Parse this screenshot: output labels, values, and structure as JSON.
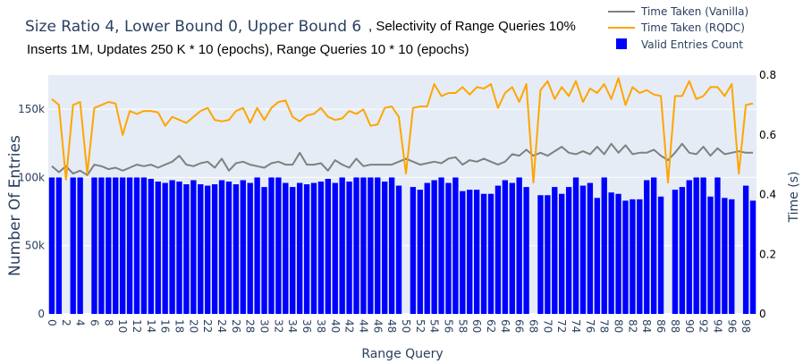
{
  "chart_data": {
    "type": "bar",
    "title": "Size Ratio 4, Lower Bound 0, Upper Bound 6",
    "title_suffix": ", Selectivity of Range Queries 10%",
    "subtitle": "Inserts 1M, Updates 250 K * 10 (epochs), Range Queries 10 * 10 (epochs)",
    "xlabel": "Range Query",
    "ylabel": "Number Of Entries",
    "y2label": "Time (s)",
    "ylim": [
      0,
      175000
    ],
    "y2lim": [
      0,
      0.8
    ],
    "xlim": [
      -0.5,
      99.5
    ],
    "grid": true,
    "legend_position": "top-right",
    "x_tick_labels": [
      "0",
      "2",
      "4",
      "6",
      "8",
      "10",
      "12",
      "14",
      "16",
      "18",
      "20",
      "22",
      "24",
      "26",
      "28",
      "30",
      "32",
      "34",
      "36",
      "38",
      "40",
      "42",
      "44",
      "46",
      "48",
      "50",
      "52",
      "54",
      "56",
      "58",
      "60",
      "62",
      "64",
      "66",
      "68",
      "70",
      "72",
      "74",
      "76",
      "78",
      "80",
      "82",
      "84",
      "86",
      "88",
      "90",
      "92",
      "94",
      "96",
      "98"
    ],
    "y_tick_labels": [
      "0",
      "50k",
      "100k",
      "150k"
    ],
    "y2_tick_labels": [
      "0",
      "0.2",
      "0.4",
      "0.6",
      "0.8"
    ],
    "x": [
      0,
      1,
      2,
      3,
      4,
      5,
      6,
      7,
      8,
      9,
      10,
      11,
      12,
      13,
      14,
      15,
      16,
      17,
      18,
      19,
      20,
      21,
      22,
      23,
      24,
      25,
      26,
      27,
      28,
      29,
      30,
      31,
      32,
      33,
      34,
      35,
      36,
      37,
      38,
      39,
      40,
      41,
      42,
      43,
      44,
      45,
      46,
      47,
      48,
      49,
      50,
      51,
      52,
      53,
      54,
      55,
      56,
      57,
      58,
      59,
      60,
      61,
      62,
      63,
      64,
      65,
      66,
      67,
      68,
      69,
      70,
      71,
      72,
      73,
      74,
      75,
      76,
      77,
      78,
      79,
      80,
      81,
      82,
      83,
      84,
      85,
      86,
      87,
      88,
      89,
      90,
      91,
      92,
      93,
      94,
      95,
      96,
      97,
      98,
      99
    ],
    "series": [
      {
        "name": "Valid Entries Count",
        "kind": "bar",
        "axis": "y",
        "color": "#0000ff",
        "values": [
          100000,
          100000,
          0,
          100000,
          100000,
          0,
          100000,
          100000,
          100000,
          100000,
          100000,
          100000,
          100000,
          100000,
          99000,
          97000,
          96000,
          98000,
          97000,
          95000,
          98000,
          95000,
          94000,
          95000,
          98000,
          97000,
          95000,
          98000,
          96000,
          100000,
          93000,
          100000,
          100000,
          96000,
          93000,
          96000,
          95000,
          96000,
          97000,
          99000,
          96000,
          100000,
          97000,
          100000,
          100000,
          100000,
          100000,
          97000,
          100000,
          94000,
          0,
          93000,
          91000,
          96000,
          98000,
          100000,
          96000,
          100000,
          90000,
          91000,
          91000,
          88000,
          88000,
          94000,
          98000,
          96000,
          100000,
          93000,
          0,
          87000,
          87000,
          93000,
          88000,
          93000,
          100000,
          94000,
          96000,
          85000,
          100000,
          89000,
          88000,
          83000,
          84000,
          84000,
          98000,
          100000,
          86000,
          0,
          91000,
          93000,
          98000,
          100000,
          100000,
          86000,
          100000,
          85000,
          84000,
          0,
          94000,
          83000
        ]
      },
      {
        "name": "Time Taken (Vanilla)",
        "kind": "line",
        "axis": "y2",
        "color": "#808080",
        "values": [
          0.495,
          0.475,
          0.495,
          0.47,
          0.48,
          0.465,
          0.5,
          0.495,
          0.485,
          0.49,
          0.48,
          0.49,
          0.5,
          0.495,
          0.5,
          0.49,
          0.5,
          0.51,
          0.53,
          0.5,
          0.495,
          0.505,
          0.51,
          0.49,
          0.52,
          0.48,
          0.505,
          0.51,
          0.5,
          0.495,
          0.49,
          0.505,
          0.51,
          0.5,
          0.5,
          0.54,
          0.5,
          0.5,
          0.505,
          0.48,
          0.515,
          0.5,
          0.49,
          0.52,
          0.495,
          0.5,
          0.5,
          0.5,
          0.5,
          0.51,
          0.52,
          0.51,
          0.5,
          0.505,
          0.51,
          0.505,
          0.52,
          0.525,
          0.5,
          0.515,
          0.51,
          0.52,
          0.51,
          0.5,
          0.51,
          0.535,
          0.53,
          0.55,
          0.53,
          0.54,
          0.53,
          0.545,
          0.56,
          0.54,
          0.535,
          0.545,
          0.535,
          0.56,
          0.535,
          0.57,
          0.54,
          0.565,
          0.535,
          0.54,
          0.54,
          0.55,
          0.53,
          0.515,
          0.54,
          0.57,
          0.54,
          0.535,
          0.56,
          0.53,
          0.555,
          0.535,
          0.54,
          0.545,
          0.54,
          0.54
        ]
      },
      {
        "name": "Time Taken (RQDC)",
        "kind": "line",
        "axis": "y2",
        "color": "#ffa500",
        "values": [
          0.72,
          0.7,
          0.45,
          0.7,
          0.71,
          0.47,
          0.69,
          0.7,
          0.71,
          0.705,
          0.6,
          0.68,
          0.67,
          0.68,
          0.68,
          0.675,
          0.63,
          0.66,
          0.65,
          0.64,
          0.66,
          0.68,
          0.69,
          0.65,
          0.645,
          0.65,
          0.68,
          0.69,
          0.64,
          0.69,
          0.65,
          0.69,
          0.71,
          0.715,
          0.66,
          0.645,
          0.665,
          0.67,
          0.69,
          0.66,
          0.65,
          0.655,
          0.68,
          0.67,
          0.685,
          0.63,
          0.635,
          0.69,
          0.695,
          0.66,
          0.47,
          0.69,
          0.695,
          0.695,
          0.77,
          0.73,
          0.74,
          0.74,
          0.76,
          0.735,
          0.76,
          0.755,
          0.77,
          0.69,
          0.74,
          0.76,
          0.71,
          0.77,
          0.44,
          0.75,
          0.78,
          0.72,
          0.76,
          0.73,
          0.78,
          0.71,
          0.755,
          0.74,
          0.77,
          0.72,
          0.79,
          0.7,
          0.76,
          0.74,
          0.75,
          0.735,
          0.73,
          0.44,
          0.73,
          0.73,
          0.78,
          0.72,
          0.73,
          0.76,
          0.76,
          0.73,
          0.77,
          0.47,
          0.7,
          0.705
        ]
      }
    ]
  }
}
